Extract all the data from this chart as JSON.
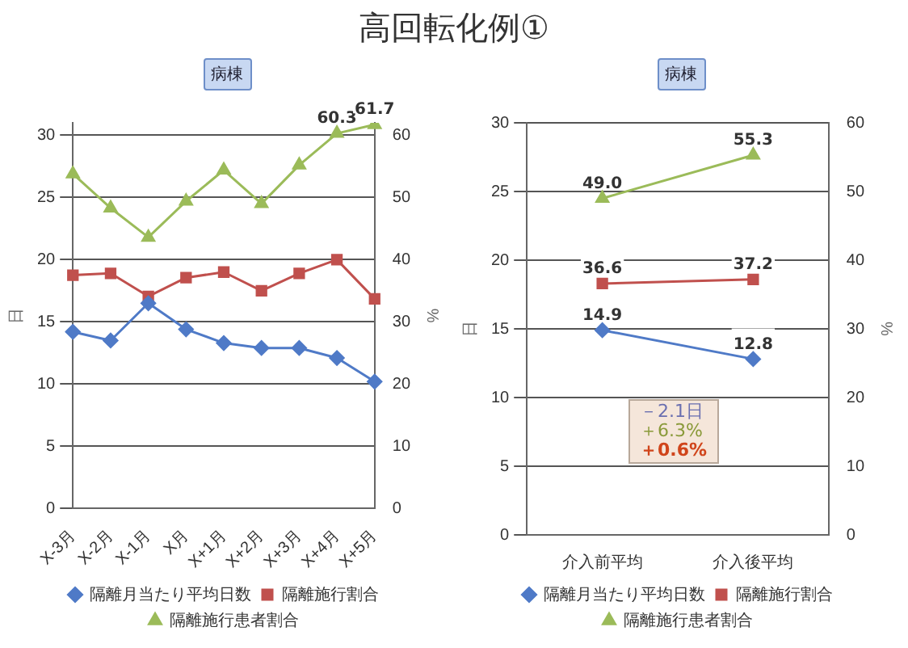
{
  "chart_data": [
    {
      "type": "line",
      "title": "高回転化例①",
      "subtitle": "病棟",
      "categories": [
        "X-3月",
        "X-2月",
        "X-1月",
        "X月",
        "X+1月",
        "X+2月",
        "X+3月",
        "X+4月",
        "X+5月"
      ],
      "series": [
        {
          "name": "隔離月当たり平均日数",
          "color": "#4f7ac7",
          "marker": "diamond",
          "values": [
            14.2,
            13.5,
            16.5,
            14.4,
            13.3,
            12.9,
            12.9,
            12.1,
            10.2
          ]
        },
        {
          "name": "隔離施行割合",
          "color": "#c0504d",
          "marker": "square",
          "axis": "y2",
          "values": [
            37.5,
            37.8,
            34.1,
            37.1,
            38.0,
            35.0,
            37.8,
            40.0,
            33.7
          ]
        },
        {
          "name": "隔離施行患者割合",
          "color": "#9bbb59",
          "marker": "triangle",
          "axis": "y2",
          "values": [
            53.8,
            48.3,
            43.6,
            49.4,
            54.4,
            49.0,
            55.2,
            60.3,
            61.7
          ],
          "value_labels": [
            null,
            null,
            null,
            null,
            null,
            null,
            null,
            "60.3",
            "61.7"
          ]
        }
      ],
      "ylim": [
        0,
        31
      ],
      "yticks": [
        0,
        5,
        10,
        15,
        20,
        25,
        30
      ],
      "y2lim": [
        0,
        62
      ],
      "y2ticks": [
        0,
        10,
        20,
        30,
        40,
        50,
        60
      ],
      "ylabel": "日",
      "y2label": "%",
      "grid": "y",
      "legend": "bottom"
    },
    {
      "type": "line",
      "subtitle": "病棟",
      "categories": [
        "介入前平均",
        "介入後平均"
      ],
      "series": [
        {
          "name": "隔離月当たり平均日数",
          "color": "#4f7ac7",
          "marker": "diamond",
          "values": [
            14.9,
            12.8
          ],
          "value_labels": [
            "14.9",
            "12.8"
          ]
        },
        {
          "name": "隔離施行割合",
          "color": "#c0504d",
          "marker": "square",
          "axis": "y2",
          "values": [
            36.6,
            37.2
          ],
          "value_labels": [
            "36.6",
            "37.2"
          ]
        },
        {
          "name": "隔離施行患者割合",
          "color": "#9bbb59",
          "marker": "triangle",
          "axis": "y2",
          "values": [
            49.0,
            55.3
          ],
          "value_labels": [
            "49.0",
            "55.3"
          ]
        }
      ],
      "ylim": [
        0,
        30
      ],
      "yticks": [
        0,
        5,
        10,
        15,
        20,
        25,
        30
      ],
      "y2lim": [
        0,
        60
      ],
      "y2ticks": [
        0,
        10,
        20,
        30,
        40,
        50,
        60
      ],
      "ylabel": "日",
      "y2label": "%",
      "grid": "y",
      "legend": "bottom",
      "annotations": [
        "－2.1日",
        "＋6.3%",
        "＋0.6%"
      ]
    }
  ]
}
